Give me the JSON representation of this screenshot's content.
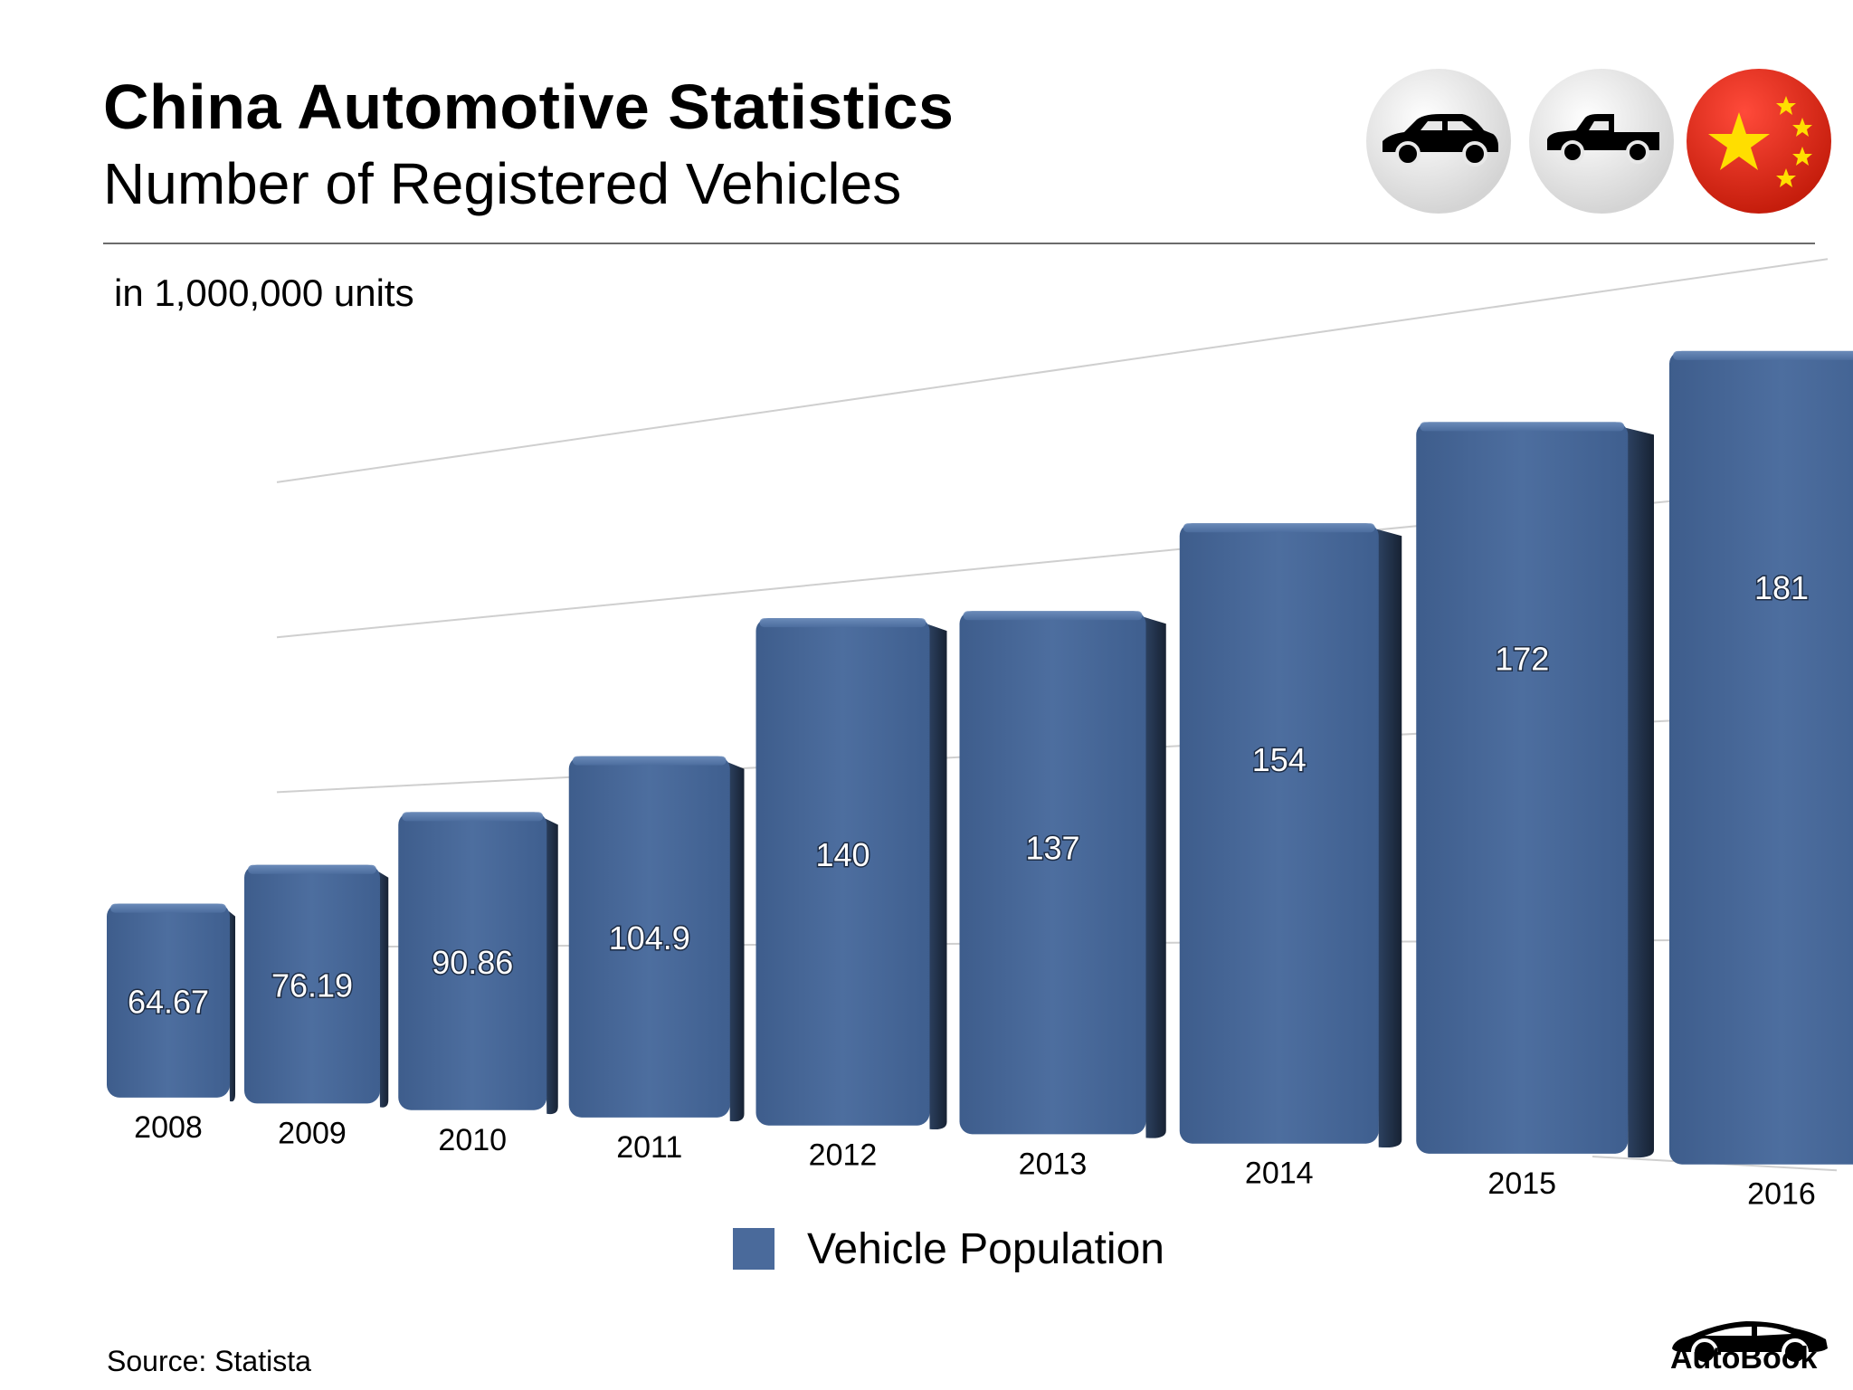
{
  "header": {
    "title": "China Automotive Statistics",
    "subtitle": "Number of Registered Vehicles"
  },
  "units_label": "in 1,000,000 units",
  "badges": [
    {
      "name": "sedan-icon",
      "bg": "#e3e3e3"
    },
    {
      "name": "pickup-truck-icon",
      "bg": "#e3e3e3"
    },
    {
      "name": "china-flag-icon",
      "bg": "#de2910",
      "star": "#ffde00"
    }
  ],
  "colors": {
    "bar_front": "#4a6a9b",
    "bar_side": "#1f2f47",
    "bar_top": "#5b7cab",
    "gridline": "#cfcfcf"
  },
  "chart_data": {
    "type": "bar",
    "title": "Number of Registered Vehicles",
    "ylabel": "in 1,000,000 units",
    "xlabel": "",
    "categories": [
      "2008",
      "2009",
      "2010",
      "2011",
      "2012",
      "2013",
      "2014",
      "2015",
      "2016"
    ],
    "series": [
      {
        "name": "Vehicle Population",
        "values": [
          64.67,
          76.19,
          90.86,
          104.9,
          140,
          137,
          154,
          172,
          181
        ]
      }
    ],
    "value_labels": [
      "64.67",
      "76.19",
      "90.86",
      "104.9",
      "140",
      "137",
      "154",
      "172",
      "181"
    ],
    "ylim": [
      0,
      200
    ],
    "grid": true,
    "legend": "bottom-center"
  },
  "legend": {
    "label": "Vehicle Population"
  },
  "source": "Source:  Statista",
  "brand": {
    "name": "AutoBook"
  }
}
